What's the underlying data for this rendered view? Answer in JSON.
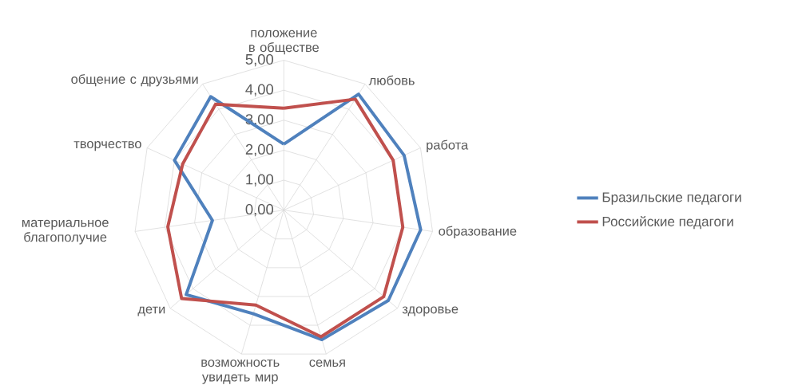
{
  "chart_data": {
    "type": "radar",
    "categories": [
      "положение в обществе",
      "любовь",
      "работа",
      "образование",
      "здоровье",
      "семья",
      "возможность увидеть мир",
      "дети",
      "материальное благополучие",
      "творчество",
      "общение с друзьями"
    ],
    "series": [
      {
        "name": "Бразильские педагоги",
        "color": "#4f81bd",
        "values": [
          2.2,
          4.6,
          4.4,
          4.6,
          4.6,
          4.5,
          3.6,
          4.3,
          2.4,
          4.0,
          4.5
        ]
      },
      {
        "name": "Российские педагоги",
        "color": "#c0504d",
        "values": [
          3.4,
          4.4,
          4.0,
          4.0,
          4.4,
          4.4,
          3.3,
          4.5,
          3.9,
          3.7,
          4.2
        ]
      }
    ],
    "ylim": [
      0,
      5
    ],
    "yticks": [
      {
        "value": 0,
        "label": "0,00"
      },
      {
        "value": 1,
        "label": "1,00"
      },
      {
        "value": 2,
        "label": "2,00"
      },
      {
        "value": 3,
        "label": "3,00"
      },
      {
        "value": 4,
        "label": "4,00"
      },
      {
        "value": 5,
        "label": "5,00"
      }
    ],
    "grid": true,
    "legend": "right"
  }
}
